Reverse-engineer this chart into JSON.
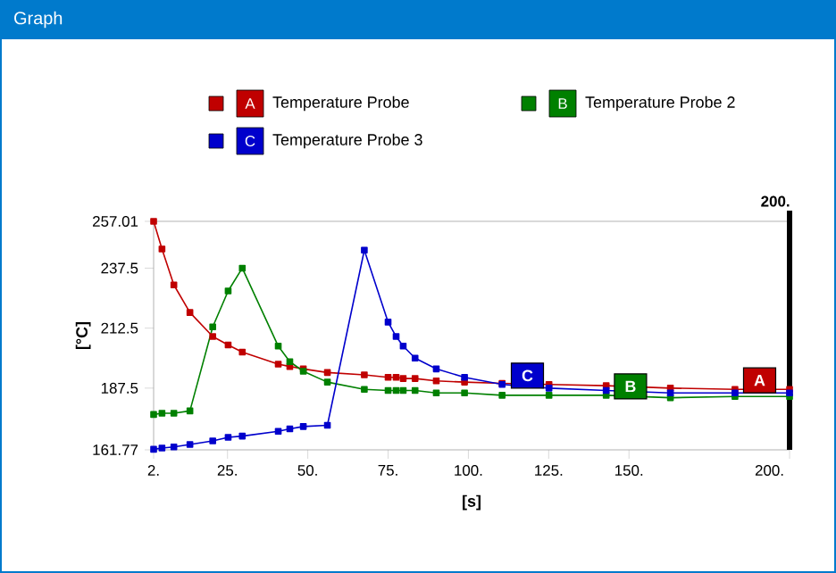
{
  "chart_data": {
    "type": "line",
    "title": "Graph",
    "xlabel": "[s]",
    "ylabel": "[°C]",
    "x": [
      2,
      4.6,
      8.3,
      13.3,
      20.4,
      25.2,
      29.6,
      40.8,
      44.4,
      48.6,
      56.1,
      67.6,
      75,
      77.5,
      79.7,
      83.4,
      90,
      98.8,
      110.5,
      125.1,
      142.9,
      162.9,
      183,
      200
    ],
    "series": [
      {
        "name": "Temperature Probe",
        "color": "#c00000",
        "values": [
          257,
          245.5,
          230.5,
          219,
          209,
          205.5,
          202.5,
          197.5,
          196.5,
          195.5,
          194,
          193,
          192,
          192,
          191.5,
          191.5,
          190.5,
          190,
          189.5,
          189,
          188.5,
          187.5,
          187,
          187
        ]
      },
      {
        "name": "Temperature Probe 2",
        "color": "#008000",
        "values": [
          176.5,
          177,
          177,
          178,
          213,
          228,
          237.5,
          205,
          198.5,
          194.5,
          190,
          187,
          186.5,
          186.5,
          186.5,
          186.5,
          185.5,
          185.5,
          184.5,
          184.5,
          184.5,
          183.5,
          184,
          184
        ]
      },
      {
        "name": "Temperature Probe 3",
        "color": "#0000cc",
        "values": [
          162,
          162.5,
          163,
          164,
          165.5,
          167,
          167.5,
          169.5,
          170.5,
          171.5,
          172,
          245,
          215,
          209,
          205,
          200,
          195.5,
          192,
          189,
          187.5,
          186.5,
          185.5,
          185.5,
          185.5
        ]
      }
    ],
    "annotations": [
      {
        "text": "A",
        "x": 184,
        "y": 187
      },
      {
        "text": "B",
        "x": 143.8,
        "y": 184.5
      },
      {
        "text": "C",
        "x": 111.7,
        "y": 189
      }
    ],
    "xlim": [
      2,
      200
    ],
    "ylim": [
      161.77,
      257.01
    ],
    "xticks": [
      {
        "value": 2,
        "label": "2."
      },
      {
        "value": 25,
        "label": "25."
      },
      {
        "value": 50,
        "label": "50."
      },
      {
        "value": 75,
        "label": "75."
      },
      {
        "value": 100,
        "label": "100."
      },
      {
        "value": 125,
        "label": "125."
      },
      {
        "value": 150,
        "label": "150."
      },
      {
        "value": 200,
        "label": "200."
      }
    ],
    "yticks": [
      161.77,
      187.5,
      212.5,
      237.5,
      257.01
    ],
    "ref_lines": [
      {
        "axis": "x",
        "value": 200,
        "label": "200.",
        "color": "#000000"
      }
    ],
    "grid": false,
    "legend": "top",
    "marker": "square",
    "line_style": "solid"
  }
}
